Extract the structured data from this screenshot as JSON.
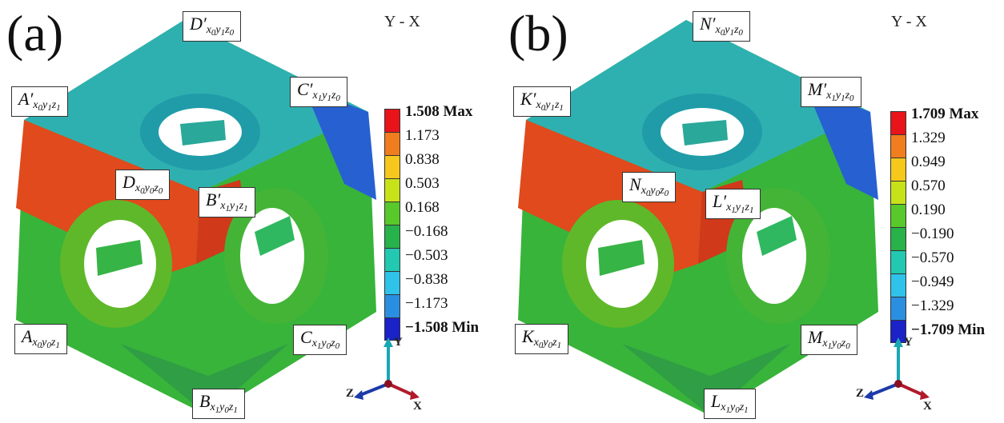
{
  "panels": [
    {
      "letter": "(a)",
      "view": "Y - X",
      "nodes": {
        "Dp": {
          "main": "D′",
          "s1": "x",
          "s1i": "0",
          "s2": "y",
          "s2i": "1",
          "s3": "z",
          "s3i": "0"
        },
        "Ap": {
          "main": "A′",
          "s1": "x",
          "s1i": "0",
          "s2": "y",
          "s2i": "1",
          "s3": "z",
          "s3i": "1"
        },
        "Cp": {
          "main": "C′",
          "s1": "x",
          "s1i": "1",
          "s2": "y",
          "s2i": "1",
          "s3": "z",
          "s3i": "0"
        },
        "D": {
          "main": "D",
          "s1": "x",
          "s1i": "0",
          "s2": "y",
          "s2i": "0",
          "s3": "z",
          "s3i": "0"
        },
        "Bp": {
          "main": "B′",
          "s1": "x",
          "s1i": "1",
          "s2": "y",
          "s2i": "1",
          "s3": "z",
          "s3i": "1"
        },
        "A": {
          "main": "A",
          "s1": "x",
          "s1i": "0",
          "s2": "y",
          "s2i": "0",
          "s3": "z",
          "s3i": "1"
        },
        "C": {
          "main": "C",
          "s1": "x",
          "s1i": "1",
          "s2": "y",
          "s2i": "0",
          "s3": "z",
          "s3i": "0"
        },
        "B": {
          "main": "B",
          "s1": "x",
          "s1i": "1",
          "s2": "y",
          "s2i": "0",
          "s3": "z",
          "s3i": "1"
        }
      },
      "legend": [
        "1.508 Max",
        "1.173",
        "0.838",
        "0.503",
        "0.168",
        "−0.168",
        "−0.503",
        "−0.838",
        "−1.173",
        "−1.508 Min"
      ],
      "axes": {
        "y": "Y",
        "z": "Z",
        "x": "X"
      }
    },
    {
      "letter": "(b)",
      "view": "Y - X",
      "nodes": {
        "Dp": {
          "main": "N′",
          "s1": "x",
          "s1i": "0",
          "s2": "y",
          "s2i": "1",
          "s3": "z",
          "s3i": "0"
        },
        "Ap": {
          "main": "K′",
          "s1": "x",
          "s1i": "0",
          "s2": "y",
          "s2i": "1",
          "s3": "z",
          "s3i": "1"
        },
        "Cp": {
          "main": "M′",
          "s1": "x",
          "s1i": "1",
          "s2": "y",
          "s2i": "1",
          "s3": "z",
          "s3i": "0"
        },
        "D": {
          "main": "N",
          "s1": "x",
          "s1i": "0",
          "s2": "y",
          "s2i": "0",
          "s3": "z",
          "s3i": "0"
        },
        "Bp": {
          "main": "L′",
          "s1": "x",
          "s1i": "1",
          "s2": "y",
          "s2i": "1",
          "s3": "z",
          "s3i": "1"
        },
        "A": {
          "main": "K",
          "s1": "x",
          "s1i": "0",
          "s2": "y",
          "s2i": "0",
          "s3": "z",
          "s3i": "1"
        },
        "C": {
          "main": "M",
          "s1": "x",
          "s1i": "1",
          "s2": "y",
          "s2i": "0",
          "s3": "z",
          "s3i": "0"
        },
        "B": {
          "main": "L",
          "s1": "x",
          "s1i": "1",
          "s2": "y",
          "s2i": "0",
          "s3": "z",
          "s3i": "1"
        }
      },
      "legend": [
        "1.709 Max",
        "1.329",
        "0.949",
        "0.570",
        "0.190",
        "−0.190",
        "−0.570",
        "−0.949",
        "−1.329",
        "−1.709 Min"
      ],
      "axes": {
        "y": "Y",
        "z": "Z",
        "x": "X"
      }
    }
  ],
  "colors": {
    "legend_scale": [
      "#e8141a",
      "#f07d1e",
      "#f5c81b",
      "#c8e21a",
      "#58c82a",
      "#28b24a",
      "#22c8b0",
      "#2fc3ea",
      "#2a8fe0",
      "#1a22c8"
    ],
    "axis_y": "#1aa7b5",
    "axis_z": "#1c3aa8",
    "axis_x": "#b01a2a"
  }
}
